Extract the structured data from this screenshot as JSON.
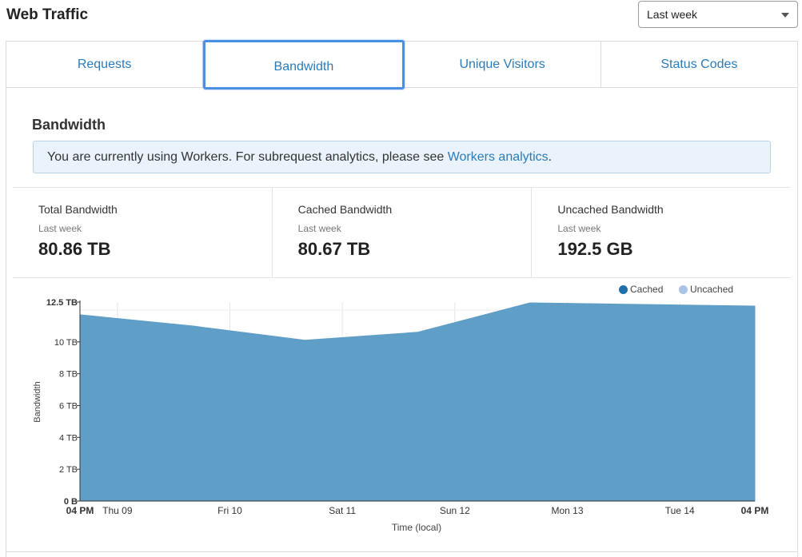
{
  "page": {
    "title": "Web Traffic"
  },
  "time_range": {
    "selected": "Last week"
  },
  "tabs": [
    {
      "label": "Requests",
      "active": false
    },
    {
      "label": "Bandwidth",
      "active": true
    },
    {
      "label": "Unique Visitors",
      "active": false
    },
    {
      "label": "Status Codes",
      "active": false
    }
  ],
  "section": {
    "title": "Bandwidth"
  },
  "notice": {
    "text": "You are currently using Workers. For subrequest analytics, please see ",
    "link": "Workers analytics",
    "suffix": "."
  },
  "stats": [
    {
      "label": "Total Bandwidth",
      "period": "Last week",
      "value": "80.86 TB"
    },
    {
      "label": "Cached Bandwidth",
      "period": "Last week",
      "value": "80.67 TB"
    },
    {
      "label": "Uncached Bandwidth",
      "period": "Last week",
      "value": "192.5 GB"
    }
  ],
  "legend": [
    {
      "label": "Cached",
      "color": "#1f6fab"
    },
    {
      "label": "Uncached",
      "color": "#a9c4e4"
    }
  ],
  "chart_data": {
    "type": "area",
    "xlabel": "Time (local)",
    "ylabel": "Bandwidth",
    "y_unit": "TB",
    "ylim": [
      0,
      12.5
    ],
    "y_ticks": [
      {
        "value": 0,
        "label": "0 B"
      },
      {
        "value": 2,
        "label": "2 TB"
      },
      {
        "value": 4,
        "label": "4 TB"
      },
      {
        "value": 6,
        "label": "6 TB"
      },
      {
        "value": 8,
        "label": "8 TB"
      },
      {
        "value": 10,
        "label": "10 TB"
      },
      {
        "value": 12.5,
        "label": "12.5 TB"
      }
    ],
    "x_ticks": [
      {
        "t": 0,
        "label": "04 PM",
        "bold": true
      },
      {
        "t": 0.333,
        "label": "Thu 09",
        "bold": false
      },
      {
        "t": 1.333,
        "label": "Fri 10",
        "bold": false
      },
      {
        "t": 2.333,
        "label": "Sat 11",
        "bold": false
      },
      {
        "t": 3.333,
        "label": "Sun 12",
        "bold": false
      },
      {
        "t": 4.333,
        "label": "Mon 13",
        "bold": false
      },
      {
        "t": 5.333,
        "label": "Tue 14",
        "bold": false
      },
      {
        "t": 6,
        "label": "04 PM",
        "bold": true
      }
    ],
    "xlim": [
      0,
      6
    ],
    "series": [
      {
        "name": "Cached",
        "color": "#5f9ec6",
        "points": [
          [
            0,
            11.7
          ],
          [
            1,
            11.0
          ],
          [
            2,
            10.1
          ],
          [
            3,
            10.6
          ],
          [
            4,
            12.45
          ],
          [
            5,
            12.35
          ],
          [
            6,
            12.25
          ]
        ]
      }
    ],
    "grid": true
  }
}
